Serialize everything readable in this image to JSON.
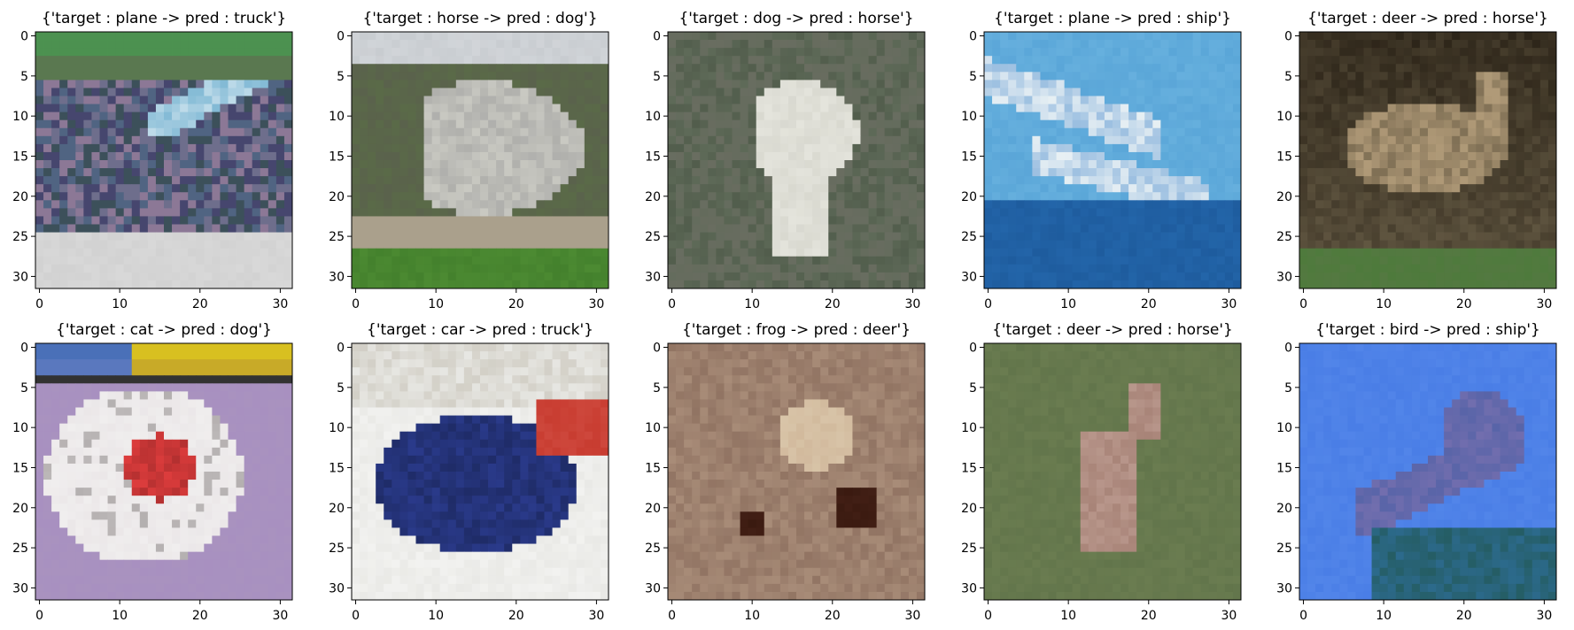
{
  "chart_data": [
    {
      "type": "image",
      "title": "{'target : plane -> pred : truck'}",
      "target": "plane",
      "pred": "truck",
      "xlim": [
        -0.5,
        31.5
      ],
      "ylim": [
        31.5,
        -0.5
      ],
      "xticks": [
        0,
        10,
        20,
        30
      ],
      "yticks": [
        0,
        5,
        10,
        15,
        20,
        25,
        30
      ],
      "xtick_labels": [
        "0",
        "10",
        "20",
        "30"
      ],
      "ytick_labels": [
        "0",
        "5",
        "10",
        "15",
        "20",
        "25",
        "30"
      ],
      "colors": {
        "sky": "#4f8f4c",
        "ground": "#5a5f78",
        "subject": "#7fb8d4",
        "bottom": "#d8d8d8"
      },
      "scene": "plane"
    },
    {
      "type": "image",
      "title": "{'target : horse -> pred : dog'}",
      "target": "horse",
      "pred": "dog",
      "xlim": [
        -0.5,
        31.5
      ],
      "ylim": [
        31.5,
        -0.5
      ],
      "xticks": [
        0,
        10,
        20,
        30
      ],
      "yticks": [
        0,
        5,
        10,
        15,
        20,
        25,
        30
      ],
      "xtick_labels": [
        "0",
        "10",
        "20",
        "30"
      ],
      "ytick_labels": [
        "0",
        "5",
        "10",
        "15",
        "20",
        "25",
        "30"
      ],
      "colors": {
        "sky": "#c8ccd0",
        "ground": "#5a6a48",
        "subject": "#c9c9c2",
        "bottom": "#4c8a32"
      },
      "scene": "horse"
    },
    {
      "type": "image",
      "title": "{'target : dog -> pred : horse'}",
      "target": "dog",
      "pred": "horse",
      "xlim": [
        -0.5,
        31.5
      ],
      "ylim": [
        31.5,
        -0.5
      ],
      "xticks": [
        0,
        10,
        20,
        30
      ],
      "yticks": [
        0,
        5,
        10,
        15,
        20,
        25,
        30
      ],
      "xtick_labels": [
        "0",
        "10",
        "20",
        "30"
      ],
      "ytick_labels": [
        "0",
        "5",
        "10",
        "15",
        "20",
        "25",
        "30"
      ],
      "colors": {
        "sky": "#5e6a58",
        "ground": "#646a62",
        "subject": "#e4e4dc",
        "bottom": "#5a6256"
      },
      "scene": "dog"
    },
    {
      "type": "image",
      "title": "{'target : plane -> pred : ship'}",
      "target": "plane",
      "pred": "ship",
      "xlim": [
        -0.5,
        31.5
      ],
      "ylim": [
        31.5,
        -0.5
      ],
      "xticks": [
        0,
        10,
        20,
        30
      ],
      "yticks": [
        0,
        5,
        10,
        15,
        20,
        25,
        30
      ],
      "xtick_labels": [
        "0",
        "10",
        "20",
        "30"
      ],
      "ytick_labels": [
        "0",
        "5",
        "10",
        "15",
        "20",
        "25",
        "30"
      ],
      "colors": {
        "sky": "#5aa6d8",
        "ground": "#2a6aa8",
        "subject": "#e8f0f4",
        "bottom": "#1e5c9e"
      },
      "scene": "plane2"
    },
    {
      "type": "image",
      "title": "{'target : deer -> pred : horse'}",
      "target": "deer",
      "pred": "horse",
      "xlim": [
        -0.5,
        31.5
      ],
      "ylim": [
        31.5,
        -0.5
      ],
      "xticks": [
        0,
        10,
        20,
        30
      ],
      "yticks": [
        0,
        5,
        10,
        15,
        20,
        25,
        30
      ],
      "xtick_labels": [
        "0",
        "10",
        "20",
        "30"
      ],
      "ytick_labels": [
        "0",
        "5",
        "10",
        "15",
        "20",
        "25",
        "30"
      ],
      "colors": {
        "sky": "#2c2418",
        "ground": "#5a5a3c",
        "subject": "#b09a78",
        "bottom": "#4e7a3c"
      },
      "scene": "deer"
    },
    {
      "type": "image",
      "title": "{'target : cat -> pred : dog'}",
      "target": "cat",
      "pred": "dog",
      "xlim": [
        -0.5,
        31.5
      ],
      "ylim": [
        31.5,
        -0.5
      ],
      "xticks": [
        0,
        10,
        20,
        30
      ],
      "yticks": [
        0,
        5,
        10,
        15,
        20,
        25,
        30
      ],
      "xtick_labels": [
        "0",
        "10",
        "20",
        "30"
      ],
      "ytick_labels": [
        "0",
        "5",
        "10",
        "15",
        "20",
        "25",
        "30"
      ],
      "colors": {
        "sky": "#a890c0",
        "ground": "#b49acb",
        "subject": "#f0eeee",
        "bottom": "#c0a8cc",
        "banner": "#d8c020",
        "banner2": "#4a70b8"
      },
      "scene": "cat"
    },
    {
      "type": "image",
      "title": "{'target : car -> pred : truck'}",
      "target": "car",
      "pred": "truck",
      "xlim": [
        -0.5,
        31.5
      ],
      "ylim": [
        31.5,
        -0.5
      ],
      "xticks": [
        0,
        10,
        20,
        30
      ],
      "yticks": [
        0,
        5,
        10,
        15,
        20,
        25,
        30
      ],
      "xtick_labels": [
        "0",
        "10",
        "20",
        "30"
      ],
      "ytick_labels": [
        "0",
        "5",
        "10",
        "15",
        "20",
        "25",
        "30"
      ],
      "colors": {
        "sky": "#e8e8e4",
        "ground": "#f2f2f0",
        "subject": "#2a3a8a",
        "bottom": "#f4f4f2",
        "accent": "#c83c30"
      },
      "scene": "car"
    },
    {
      "type": "image",
      "title": "{'target : frog -> pred : deer'}",
      "target": "frog",
      "pred": "deer",
      "xlim": [
        -0.5,
        31.5
      ],
      "ylim": [
        31.5,
        -0.5
      ],
      "xticks": [
        0,
        10,
        20,
        30
      ],
      "yticks": [
        0,
        5,
        10,
        15,
        20,
        25,
        30
      ],
      "xtick_labels": [
        "0",
        "10",
        "20",
        "30"
      ],
      "ytick_labels": [
        "0",
        "5",
        "10",
        "15",
        "20",
        "25",
        "30"
      ],
      "colors": {
        "sky": "#9a7c6a",
        "ground": "#a88c78",
        "subject": "#d8c4a8",
        "bottom": "#8a6c5c",
        "dark": "#3a1a10"
      },
      "scene": "frog"
    },
    {
      "type": "image",
      "title": "{'target : deer -> pred : horse'}",
      "target": "deer",
      "pred": "horse",
      "xlim": [
        -0.5,
        31.5
      ],
      "ylim": [
        31.5,
        -0.5
      ],
      "xticks": [
        0,
        10,
        20,
        30
      ],
      "yticks": [
        0,
        5,
        10,
        15,
        20,
        25,
        30
      ],
      "xtick_labels": [
        "0",
        "10",
        "20",
        "30"
      ],
      "ytick_labels": [
        "0",
        "5",
        "10",
        "15",
        "20",
        "25",
        "30"
      ],
      "colors": {
        "sky": "#6a7c50",
        "ground": "#728256",
        "subject": "#a88478",
        "bottom": "#62744a"
      },
      "scene": "deer2"
    },
    {
      "type": "image",
      "title": "{'target : bird -> pred : ship'}",
      "target": "bird",
      "pred": "ship",
      "xlim": [
        -0.5,
        31.5
      ],
      "ylim": [
        31.5,
        -0.5
      ],
      "xticks": [
        0,
        10,
        20,
        30
      ],
      "yticks": [
        0,
        5,
        10,
        15,
        20,
        25,
        30
      ],
      "xtick_labels": [
        "0",
        "10",
        "20",
        "30"
      ],
      "ytick_labels": [
        "0",
        "5",
        "10",
        "15",
        "20",
        "25",
        "30"
      ],
      "colors": {
        "sky": "#4a7ee6",
        "ground": "#5a8ef0",
        "subject": "#5864a8",
        "bottom": "#2c6a8c"
      },
      "scene": "bird"
    }
  ]
}
